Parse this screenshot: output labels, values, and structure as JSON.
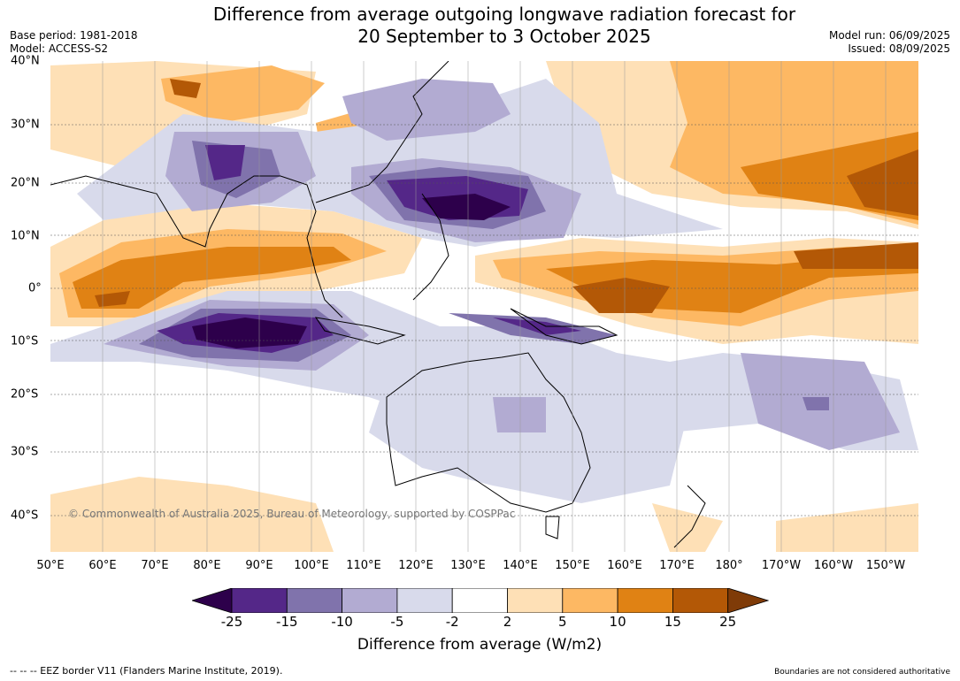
{
  "title_line1": "Difference from average outgoing longwave radiation forecast for",
  "title_line2": "20 September to 3 October 2025",
  "base_period": "Base period: 1981-2018",
  "model": "Model: ACCESS-S2",
  "model_run": "Model run: 06/09/2025",
  "issued": "Issued: 08/09/2025",
  "copyright": "© Commonwealth of Australia 2025, Bureau of Meteorology, supported by COSPPac",
  "lon_ticks": [
    "50°E",
    "60°E",
    "70°E",
    "80°E",
    "90°E",
    "100°E",
    "110°E",
    "120°E",
    "130°E",
    "140°E",
    "150°E",
    "160°E",
    "170°E",
    "180°",
    "170°W",
    "160°W",
    "150°W"
  ],
  "lat_ticks": [
    "40°N",
    "30°N",
    "20°N",
    "10°N",
    "0°",
    "10°S",
    "20°S",
    "30°S",
    "40°S"
  ],
  "colorbar": {
    "ticks": [
      "-25",
      "-15",
      "-10",
      "-5",
      "-2",
      "2",
      "5",
      "10",
      "15",
      "25"
    ],
    "title": "Difference from average (W/m2)",
    "colors": [
      "#2d004b",
      "#542788",
      "#8073ac",
      "#b2abd2",
      "#d8daeb",
      "#ffffff",
      "#fee0b6",
      "#fdb863",
      "#e08214",
      "#b35806",
      "#7f3b08"
    ]
  },
  "eez_note": "--  --  -- EEZ border V11 (Flanders Marine Institute, 2019).",
  "boundaries_note": "Boundaries are not considered authoritative"
}
